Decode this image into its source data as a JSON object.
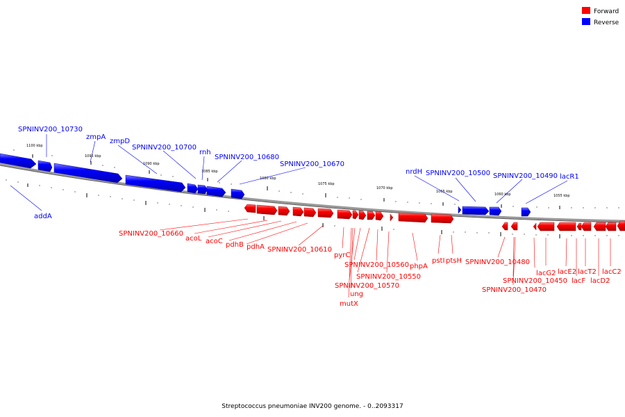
{
  "caption": "Streptococcus pneumoniae INV200 genome. - 0..2093317",
  "legend": [
    {
      "label": "Forward",
      "color": "#ff0000"
    },
    {
      "label": "Reverse",
      "color": "#0000ff"
    }
  ],
  "colors": {
    "forward": "#ff0000",
    "reverse": "#0000ff",
    "backbone": "#888888"
  },
  "scale_labels": [
    "1100 kbp",
    "1095 kbp",
    "1090 kbp",
    "1085 kbp",
    "1080 kbp",
    "1075 kbp",
    "1070 kbp",
    "1065 kbp",
    "1060 kbp",
    "1055 kbp"
  ],
  "reverse_gene_labels": [
    "SPNINV200_10730",
    "zmpA",
    "zmpD",
    "SPNINV200_10700",
    "rnh",
    "SPNINV200_10680",
    "SPNINV200_10670",
    "nrdH",
    "SPNINV200_10500",
    "SPNINV200_10490",
    "lacR1",
    "addA"
  ],
  "forward_gene_labels": [
    "SPNINV200_10660",
    "acoL",
    "acoC",
    "pdhB",
    "pdhA",
    "SPNINV200_10610",
    "pyrC",
    "SPNINV200_10560",
    "SPNINV200_10550",
    "SPNINV200_10570",
    "ung",
    "mutX",
    "phpA",
    "pstI",
    "ptsH",
    "SPNINV200_10480",
    "SPNINV200_10450",
    "SPNINV200_10470",
    "lacG2",
    "lacE2",
    "lacF",
    "lacT2",
    "lacD2",
    "lacC2"
  ]
}
